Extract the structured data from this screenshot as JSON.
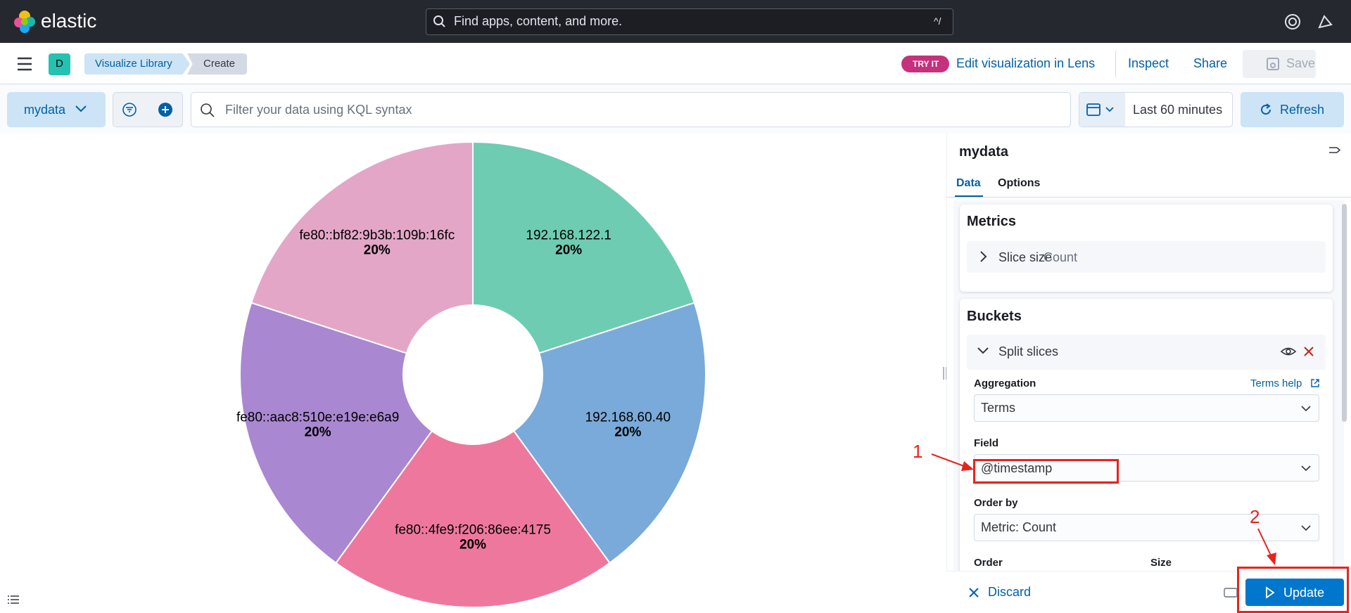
{
  "header": {
    "brand": "elastic",
    "search_placeholder": "Find apps, content, and more.",
    "search_shortcut": "^/"
  },
  "nav": {
    "space_badge": "D",
    "breadcrumbs": [
      "Visualize Library",
      "Create"
    ],
    "try_it": "TRY IT",
    "lens_link": "Edit visualization in Lens",
    "inspect": "Inspect",
    "share": "Share",
    "save": "Save"
  },
  "query_bar": {
    "data_view": "mydata",
    "query_placeholder": "Filter your data using KQL syntax",
    "time_range": "Last 60 minutes",
    "refresh": "Refresh"
  },
  "chart_data": {
    "type": "pie",
    "donut": true,
    "categories": [
      "192.168.122.1",
      "192.168.60.40",
      "fe80::4fe9:f206:86ee:4175",
      "fe80::aac8:510e:e19e:e6a9",
      "fe80::bf82:9b3b:109b:16fc"
    ],
    "values": [
      20,
      20,
      20,
      20,
      20
    ],
    "value_labels": [
      "20%",
      "20%",
      "20%",
      "20%",
      "20%"
    ],
    "colors": [
      "#6dccb1",
      "#79aad9",
      "#ee789d",
      "#a987d1",
      "#e4a6c7"
    ]
  },
  "editor": {
    "title": "mydata",
    "tabs": [
      "Data",
      "Options"
    ],
    "metrics": {
      "title": "Metrics",
      "item_label": "Slice size",
      "item_value": "Count"
    },
    "buckets": {
      "title": "Buckets",
      "item_label": "Split slices",
      "aggregation_label": "Aggregation",
      "help_link": "Terms help",
      "aggregation_value": "Terms",
      "field_label": "Field",
      "field_value": "@timestamp",
      "order_by_label": "Order by",
      "order_by_value": "Metric: Count",
      "order_label": "Order",
      "size_label": "Size"
    },
    "discard": "Discard",
    "update": "Update"
  },
  "annotations": [
    "1",
    "2"
  ]
}
